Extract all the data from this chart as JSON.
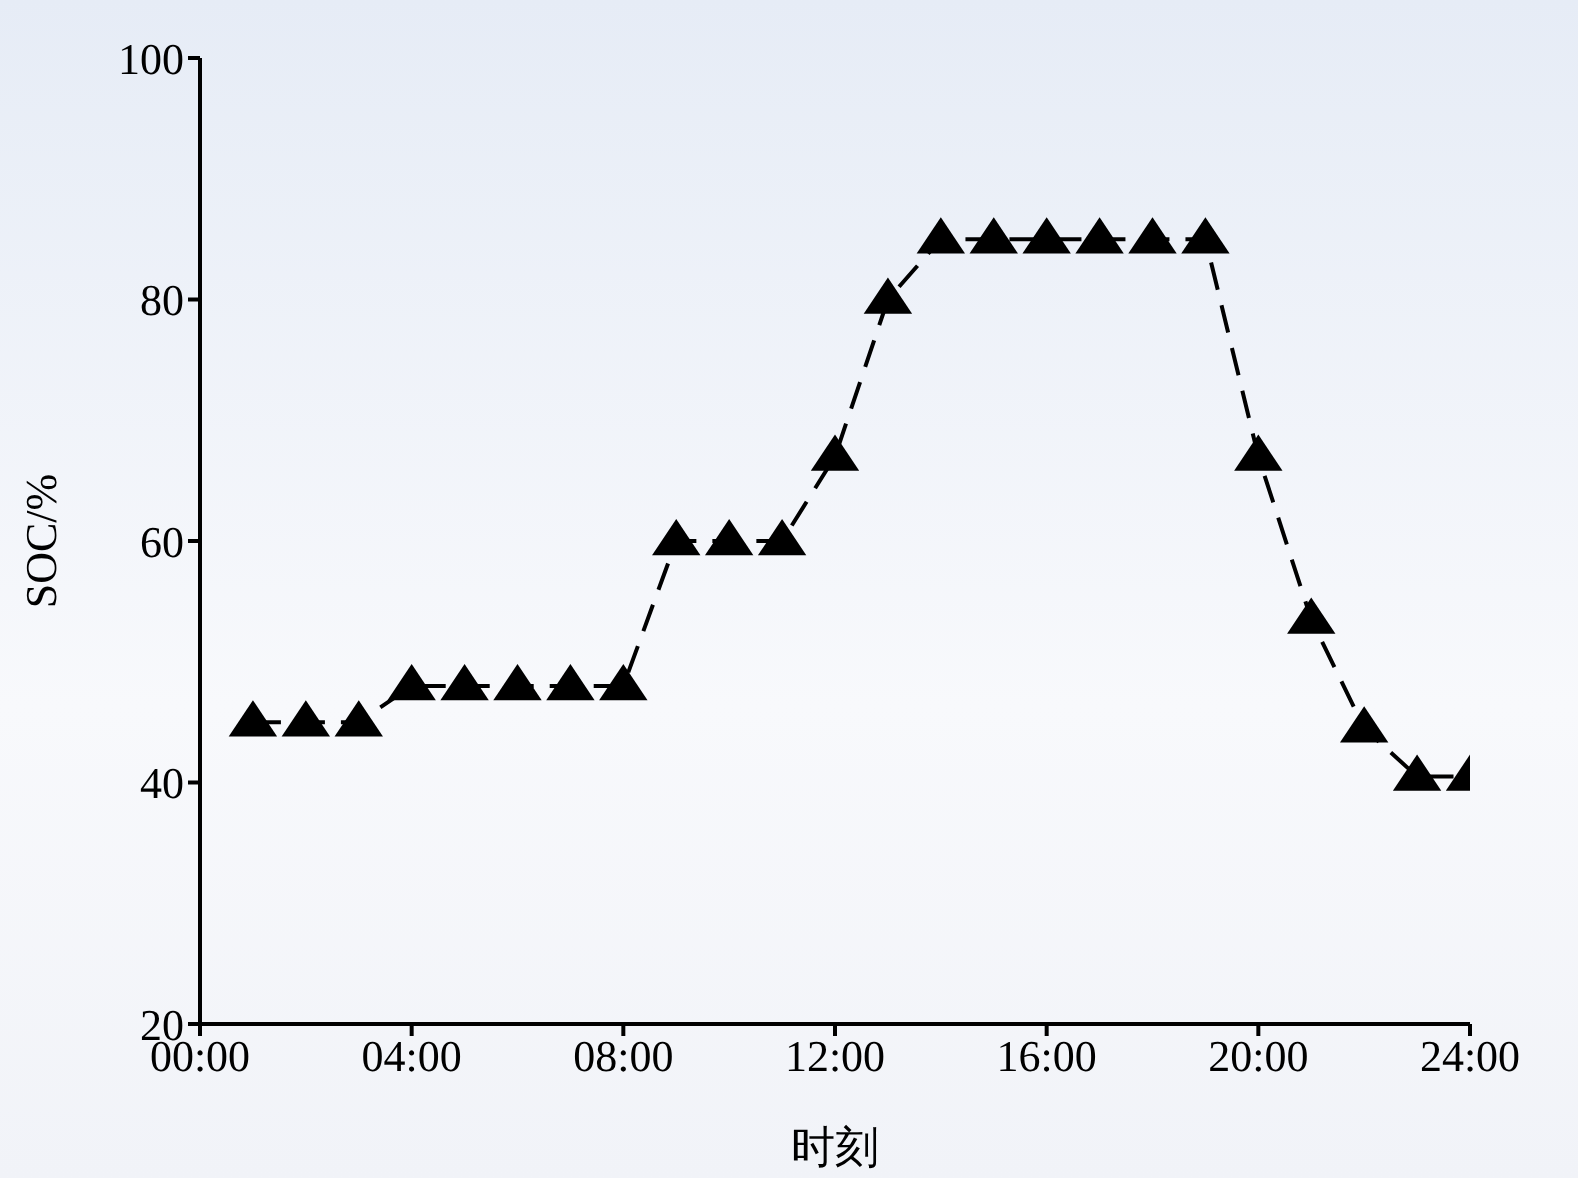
{
  "chart_data": {
    "type": "line",
    "xlabel": "时刻",
    "ylabel": "SOC/%",
    "x": [
      1,
      2,
      3,
      4,
      5,
      6,
      7,
      8,
      9,
      10,
      11,
      12,
      13,
      14,
      15,
      16,
      17,
      18,
      19,
      20,
      21,
      22,
      23,
      24
    ],
    "series": [
      {
        "color": "#000000",
        "values": [
          45,
          45,
          45,
          48,
          48,
          48,
          48,
          48,
          60,
          60,
          60,
          67,
          80,
          85,
          85,
          85,
          85,
          85,
          85,
          67,
          53.5,
          44.5,
          40.5,
          40.5
        ]
      }
    ],
    "xlim": [
      0,
      24
    ],
    "xticks": [
      {
        "value": 0,
        "label": "00:00"
      },
      {
        "value": 4,
        "label": "04:00"
      },
      {
        "value": 8,
        "label": "08:00"
      },
      {
        "value": 12,
        "label": "12:00"
      },
      {
        "value": 16,
        "label": "16:00"
      },
      {
        "value": 20,
        "label": "20:00"
      },
      {
        "value": 24,
        "label": "24:00"
      }
    ],
    "ylim": [
      20,
      100
    ],
    "yticks": [
      20,
      40,
      60,
      80,
      100
    ],
    "grid": false,
    "legend": false,
    "marker": "triangle",
    "line_style": "dashed"
  }
}
